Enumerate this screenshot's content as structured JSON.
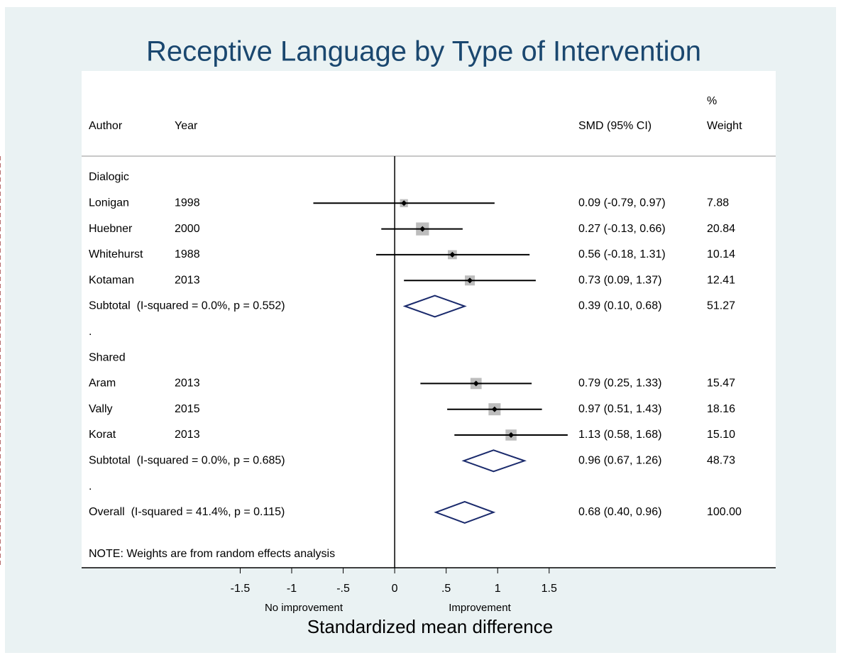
{
  "chart_data": {
    "type": "forest",
    "title": "Receptive Language by Type of Intervention",
    "headers": {
      "author": "Author",
      "year": "Year",
      "ci": "SMD (95% CI)",
      "weight_top": "%",
      "weight": "Weight"
    },
    "xlim": [
      -3.04,
      3.7
    ],
    "xticks": [
      -1.5,
      -1,
      {
        "value": -0.5,
        "label": "-.5"
      },
      0,
      {
        "value": 0.5,
        "label": ".5"
      },
      1,
      1.5
    ],
    "xlabel": "Standardized mean difference",
    "left_note": "No improvement",
    "right_note": "Improvement",
    "note": "NOTE: Weights are from random effects analysis",
    "null_line": 0,
    "reference_row": 15,
    "box_color": "#bdbdbd",
    "diamond_color": "#1a2a6c",
    "ref_color": "#9e3b3b",
    "rows": [
      {
        "kind": "group",
        "label": "Dialogic"
      },
      {
        "kind": "study",
        "author": "Lonigan",
        "year": 1998,
        "smd": 0.09,
        "lo": -0.79,
        "hi": 0.97,
        "ci_label": "0.09 (-0.79, 0.97)",
        "weight": 7.88
      },
      {
        "kind": "study",
        "author": "Huebner",
        "year": 2000,
        "smd": 0.27,
        "lo": -0.13,
        "hi": 0.66,
        "ci_label": "0.27 (-0.13, 0.66)",
        "weight": 20.84
      },
      {
        "kind": "study",
        "author": "Whitehurst",
        "year": 1988,
        "smd": 0.56,
        "lo": -0.18,
        "hi": 1.31,
        "ci_label": "0.56 (-0.18, 1.31)",
        "weight": 10.14
      },
      {
        "kind": "study",
        "author": "Kotaman",
        "year": 2013,
        "smd": 0.73,
        "lo": 0.09,
        "hi": 1.37,
        "ci_label": "0.73 (0.09, 1.37)",
        "weight": 12.41
      },
      {
        "kind": "subtotal",
        "label": "Subtotal  (I-squared = 0.0%, p = 0.552)",
        "smd": 0.39,
        "lo": 0.1,
        "hi": 0.68,
        "ci_label": "0.39 (0.10, 0.68)",
        "weight": 51.27
      },
      {
        "kind": "spacer",
        "label": "."
      },
      {
        "kind": "group",
        "label": "Shared"
      },
      {
        "kind": "study",
        "author": "Aram",
        "year": 2013,
        "smd": 0.79,
        "lo": 0.25,
        "hi": 1.33,
        "ci_label": "0.79 (0.25, 1.33)",
        "weight": 15.47
      },
      {
        "kind": "study",
        "author": "Vally",
        "year": 2015,
        "smd": 0.97,
        "lo": 0.51,
        "hi": 1.43,
        "ci_label": "0.97 (0.51, 1.43)",
        "weight": 18.16
      },
      {
        "kind": "study",
        "author": "Korat",
        "year": 2013,
        "smd": 1.13,
        "lo": 0.58,
        "hi": 1.68,
        "ci_label": "1.13 (0.58, 1.68)",
        "weight": 15.1,
        "weight_label": "15.10"
      },
      {
        "kind": "subtotal",
        "label": "Subtotal  (I-squared = 0.0%, p = 0.685)",
        "smd": 0.96,
        "lo": 0.67,
        "hi": 1.26,
        "ci_label": "0.96 (0.67, 1.26)",
        "weight": 48.73
      },
      {
        "kind": "spacer",
        "label": "."
      },
      {
        "kind": "subtotal",
        "label": "Overall  (I-squared = 41.4%, p = 0.115)",
        "smd": 0.68,
        "lo": 0.4,
        "hi": 0.96,
        "ci_label": "0.68 (0.40, 0.96)",
        "weight": 100,
        "weight_label": "100.00"
      }
    ]
  }
}
